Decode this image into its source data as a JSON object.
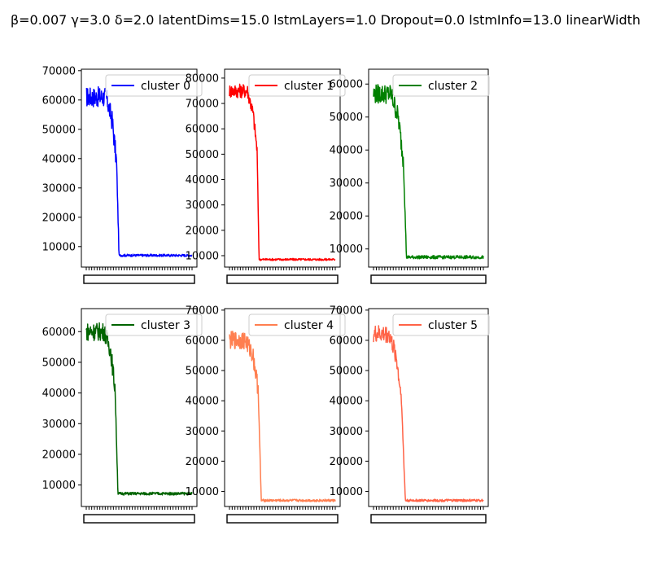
{
  "suptitle": "β=0.007 γ=3.0 δ=2.0 latentDims=15.0 lstmLayers=1.0 Dropout=0.0 lstmInfo=13.0 linearWidth",
  "chart_data": [
    {
      "type": "line",
      "series": [
        {
          "name": "cluster 0",
          "color": "#0000ff"
        }
      ],
      "y_ticks": [
        10000,
        20000,
        30000,
        40000,
        50000,
        60000,
        70000
      ],
      "ylim": [
        3000,
        70500
      ],
      "profile": {
        "start": 61000,
        "noise": 3500,
        "plateau_end": 0.19,
        "decline_mid": 47000,
        "decline_end": 0.285,
        "drop_end": 0.31,
        "low": 7000,
        "low_noise": 400
      },
      "legend": "top-right",
      "grid": false
    },
    {
      "type": "line",
      "series": [
        {
          "name": "cluster 1",
          "color": "#ff0000"
        }
      ],
      "y_ticks": [
        10000,
        20000,
        30000,
        40000,
        50000,
        60000,
        70000,
        80000
      ],
      "ylim": [
        5500,
        83500
      ],
      "profile": {
        "start": 75000,
        "noise": 2800,
        "plateau_end": 0.17,
        "decline_mid": 60000,
        "decline_end": 0.26,
        "drop_end": 0.28,
        "low": 8500,
        "low_noise": 400
      },
      "legend": "top-right",
      "grid": false
    },
    {
      "type": "line",
      "series": [
        {
          "name": "cluster 2",
          "color": "#008000"
        }
      ],
      "y_ticks": [
        10000,
        20000,
        30000,
        40000,
        50000,
        60000
      ],
      "ylim": [
        4500,
        64500
      ],
      "profile": {
        "start": 57000,
        "noise": 3000,
        "plateau_end": 0.16,
        "decline_mid": 45000,
        "decline_end": 0.27,
        "drop_end": 0.3,
        "low": 7500,
        "low_noise": 500
      },
      "legend": "top-right",
      "grid": false
    },
    {
      "type": "line",
      "series": [
        {
          "name": "cluster 3",
          "color": "#006400"
        }
      ],
      "y_ticks": [
        10000,
        20000,
        30000,
        40000,
        50000,
        60000
      ],
      "ylim": [
        3000,
        67500
      ],
      "profile": {
        "start": 60000,
        "noise": 3000,
        "plateau_end": 0.17,
        "decline_mid": 50000,
        "decline_end": 0.27,
        "drop_end": 0.3,
        "low": 7200,
        "low_noise": 450
      },
      "legend": "top-right",
      "grid": false
    },
    {
      "type": "line",
      "series": [
        {
          "name": "cluster 4",
          "color": "#ff7f50"
        }
      ],
      "y_ticks": [
        10000,
        20000,
        30000,
        40000,
        50000,
        60000,
        70000
      ],
      "ylim": [
        5000,
        70500
      ],
      "profile": {
        "start": 60000,
        "noise": 3000,
        "plateau_end": 0.15,
        "decline_mid": 52000,
        "decline_end": 0.27,
        "drop_end": 0.3,
        "low": 7000,
        "low_noise": 400
      },
      "legend": "top-right",
      "grid": false
    },
    {
      "type": "line",
      "series": [
        {
          "name": "cluster 5",
          "color": "#ff6347"
        }
      ],
      "y_ticks": [
        10000,
        20000,
        30000,
        40000,
        50000,
        60000,
        70000
      ],
      "ylim": [
        5000,
        70500
      ],
      "profile": {
        "start": 62000,
        "noise": 3000,
        "plateau_end": 0.14,
        "decline_mid": 50000,
        "decline_end": 0.25,
        "drop_end": 0.29,
        "low": 7000,
        "low_noise": 400
      },
      "legend": "top-right",
      "grid": false
    }
  ]
}
